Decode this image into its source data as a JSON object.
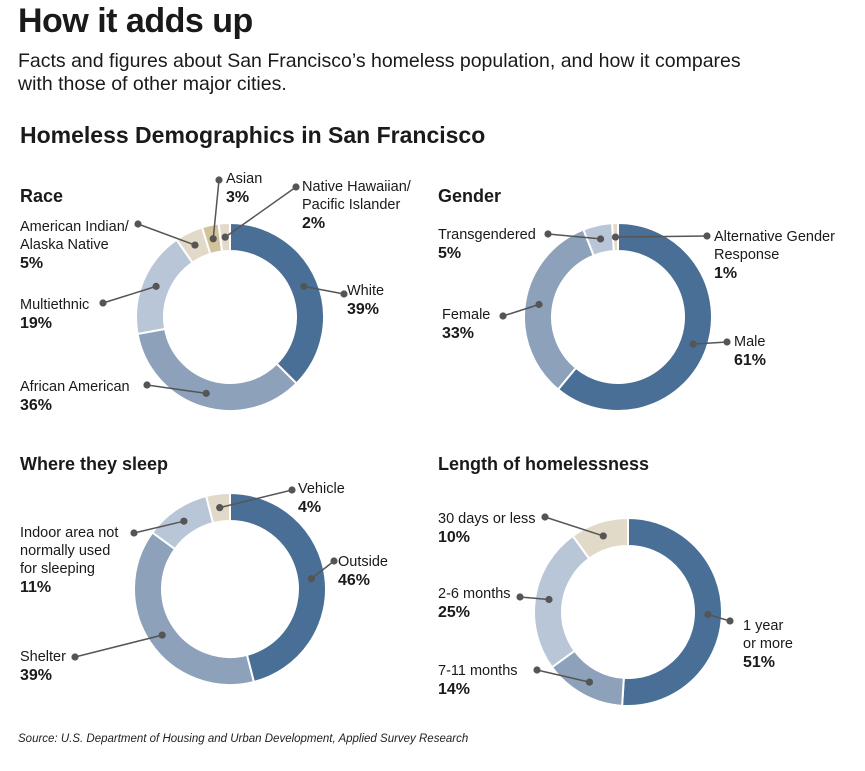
{
  "header": {
    "title": "How it adds up",
    "subtitle": "Facts and figures about San Francisco’s homeless population, and how it compares with those of other major cities.",
    "section_title": "Homeless Demographics in San Francisco"
  },
  "source": "Source: U.S. Department of Housing and Urban Development, Applied Survey Research",
  "colors": {
    "dark_blue": "#4a6f96",
    "mid_blue": "#8da1bb",
    "light_blue": "#b9c6d8",
    "beige": "#e2dac8",
    "tan": "#d2c39b",
    "leader": "#555555"
  },
  "chart_data": [
    {
      "type": "pie",
      "title": "Race",
      "slices": [
        {
          "label": "White",
          "value": 39,
          "display": "39%",
          "color": "#4a6f96"
        },
        {
          "label": "African American",
          "value": 36,
          "display": "36%",
          "color": "#8da1bb"
        },
        {
          "label": "Multiethnic",
          "value": 19,
          "display": "19%",
          "color": "#b9c6d8"
        },
        {
          "label": "American Indian/ Alaska Native",
          "label_lines": [
            "American Indian/",
            "Alaska Native"
          ],
          "value": 5,
          "display": "5%",
          "color": "#e2dac8"
        },
        {
          "label": "Asian",
          "value": 3,
          "display": "3%",
          "color": "#d2c39b"
        },
        {
          "label": "Native Hawaiian/ Pacific Islander",
          "label_lines": [
            "Native Hawaiian/",
            "Pacific Islander"
          ],
          "value": 2,
          "display": "2%",
          "color": "#e2dac8"
        }
      ]
    },
    {
      "type": "pie",
      "title": "Gender",
      "slices": [
        {
          "label": "Male",
          "value": 61,
          "display": "61%",
          "color": "#4a6f96"
        },
        {
          "label": "Female",
          "value": 33,
          "display": "33%",
          "color": "#8da1bb"
        },
        {
          "label": "Transgendered",
          "value": 5,
          "display": "5%",
          "color": "#b9c6d8"
        },
        {
          "label": "Alternative Gender Response",
          "label_lines": [
            "Alternative Gender",
            "Response"
          ],
          "value": 1,
          "display": "1%",
          "color": "#e2dac8"
        }
      ]
    },
    {
      "type": "pie",
      "title": "Where they sleep",
      "slices": [
        {
          "label": "Outside",
          "value": 46,
          "display": "46%",
          "color": "#4a6f96"
        },
        {
          "label": "Shelter",
          "value": 39,
          "display": "39%",
          "color": "#8da1bb"
        },
        {
          "label": "Indoor area not normally used for sleeping",
          "label_lines": [
            "Indoor area not",
            "normally used",
            "for sleeping"
          ],
          "value": 11,
          "display": "11%",
          "color": "#b9c6d8"
        },
        {
          "label": "Vehicle",
          "value": 4,
          "display": "4%",
          "color": "#e2dac8"
        }
      ]
    },
    {
      "type": "pie",
      "title": "Length of  homelessness",
      "slices": [
        {
          "label": "1 year or more",
          "label_lines": [
            "1 year",
            "or more"
          ],
          "value": 51,
          "display": "51%",
          "color": "#4a6f96"
        },
        {
          "label": "7-11 months",
          "value": 14,
          "display": "14%",
          "color": "#8da1bb"
        },
        {
          "label": "2-6 months",
          "value": 25,
          "display": "25%",
          "color": "#b9c6d8"
        },
        {
          "label": "30 days or less",
          "value": 10,
          "display": "10%",
          "color": "#e2dac8"
        }
      ]
    }
  ]
}
